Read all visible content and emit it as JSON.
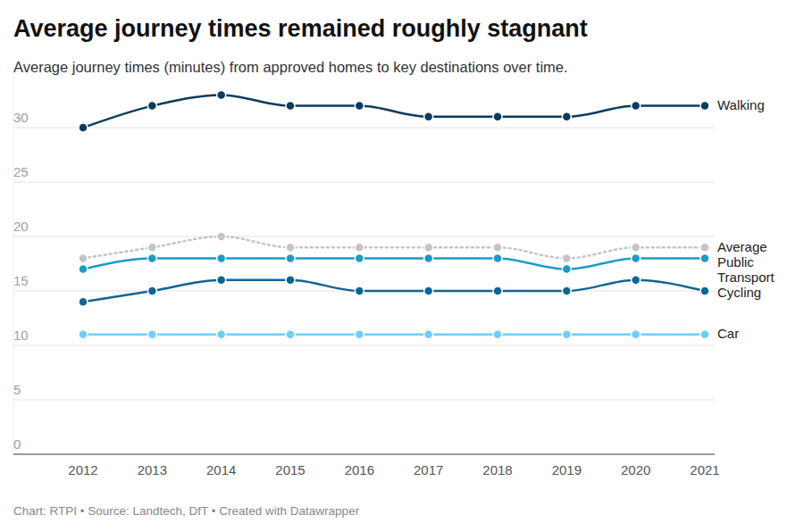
{
  "chart_data": {
    "type": "line",
    "title": "Average journey times remained roughly stagnant",
    "subtitle": "Average journey times (minutes) from approved homes to key destinations over time.",
    "source": "Chart: RTPI • Source: Landtech, DfT • Created with Datawrapper",
    "categories": [
      "2012",
      "2013",
      "2014",
      "2015",
      "2016",
      "2017",
      "2018",
      "2019",
      "2020",
      "2021"
    ],
    "series": [
      {
        "name": "Walking",
        "color": "#0b3b5e",
        "marker": "circle",
        "line_style": "solid",
        "values": [
          30,
          32,
          33,
          32,
          32,
          31,
          31,
          31,
          32,
          32
        ]
      },
      {
        "name": "Average",
        "color": "#c4c4c4",
        "marker": "circle",
        "line_style": "dotted",
        "values": [
          18,
          19,
          20,
          19,
          19,
          19,
          19,
          18,
          19,
          19
        ]
      },
      {
        "name": "Public Transport",
        "color": "#1d9ac6",
        "marker": "circle",
        "line_style": "solid",
        "values": [
          17,
          18,
          18,
          18,
          18,
          18,
          18,
          17,
          18,
          18
        ]
      },
      {
        "name": "Cycling",
        "color": "#0e6592",
        "marker": "circle",
        "line_style": "solid",
        "values": [
          14,
          15,
          16,
          16,
          15,
          15,
          15,
          15,
          16,
          15
        ]
      },
      {
        "name": "Car",
        "color": "#6dd0f2",
        "marker": "circle",
        "line_style": "solid",
        "values": [
          11,
          11,
          11,
          11,
          11,
          11,
          11,
          11,
          11,
          11
        ]
      }
    ],
    "ylim": [
      0,
      35
    ],
    "yticks": [
      0,
      5,
      10,
      15,
      20,
      25,
      30
    ],
    "grid": true
  }
}
